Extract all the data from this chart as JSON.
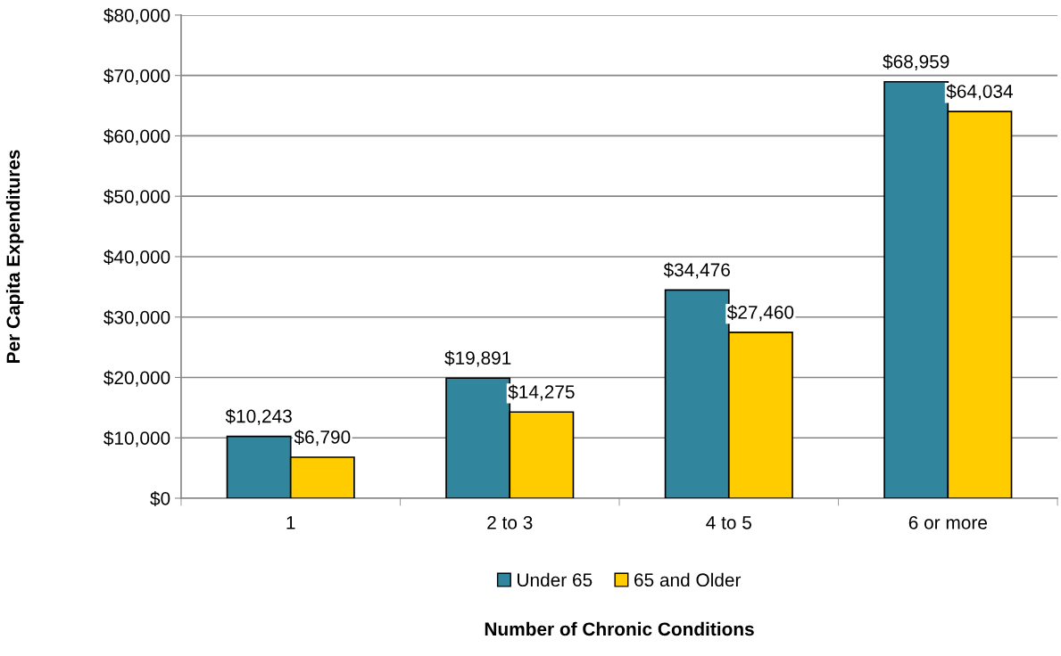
{
  "chart_data": {
    "type": "bar",
    "xlabel": "Number of Chronic Conditions",
    "ylabel": "Per Capita Expenditures",
    "categories": [
      "1",
      "2 to 3",
      "4 to 5",
      "6 or more"
    ],
    "series": [
      {
        "name": "Under 65",
        "color": "#31859c",
        "values": [
          10243,
          19891,
          34476,
          68959
        ],
        "value_labels": [
          "$10,243",
          "$19,891",
          "$34,476",
          "$68,959"
        ]
      },
      {
        "name": "65 and Older",
        "color": "#ffcc00",
        "values": [
          6790,
          14275,
          27460,
          64034
        ],
        "value_labels": [
          "$6,790",
          "$14,275",
          "$27,460",
          "$64,034"
        ]
      }
    ],
    "ylim": [
      0,
      80000
    ],
    "yticks": [
      {
        "value": 0,
        "label": "$0"
      },
      {
        "value": 10000,
        "label": "$10,000"
      },
      {
        "value": 20000,
        "label": "$20,000"
      },
      {
        "value": 30000,
        "label": "$30,000"
      },
      {
        "value": 40000,
        "label": "$40,000"
      },
      {
        "value": 50000,
        "label": "$50,000"
      },
      {
        "value": 60000,
        "label": "$60,000"
      },
      {
        "value": 70000,
        "label": "$70,000"
      },
      {
        "value": 80000,
        "label": "$80,000"
      }
    ],
    "grid": "y",
    "legend": "bottom"
  }
}
